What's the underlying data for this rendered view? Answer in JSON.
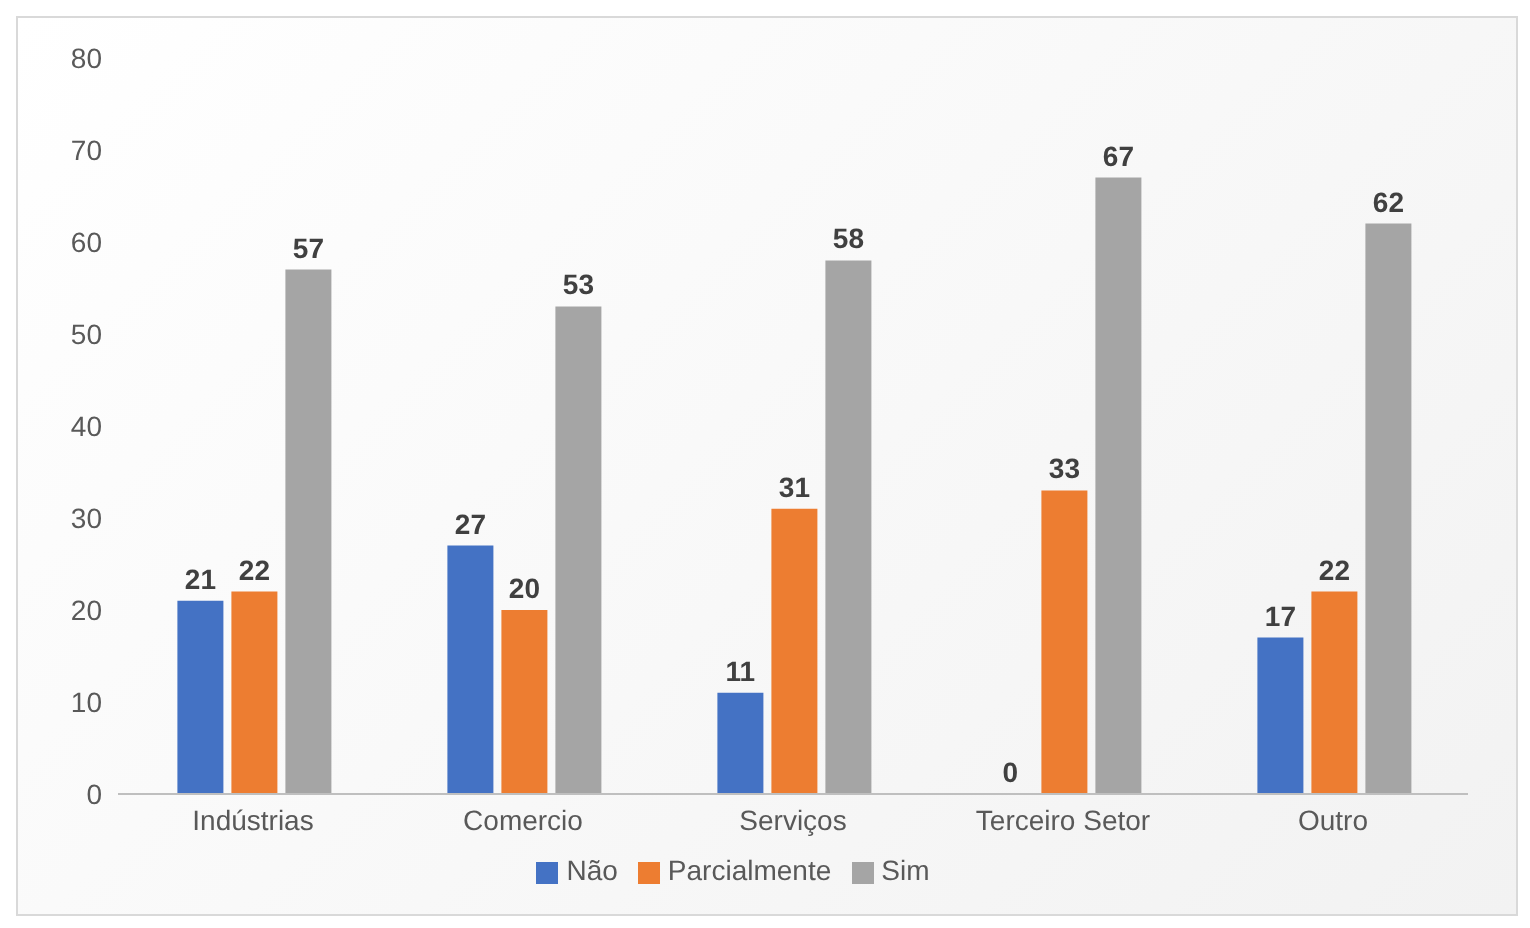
{
  "chart_data": {
    "type": "bar",
    "categories": [
      "Indústrias",
      "Comercio",
      "Serviços",
      "Terceiro Setor",
      "Outro"
    ],
    "series": [
      {
        "name": "Não",
        "color": "#4472c4",
        "values": [
          21,
          27,
          11,
          0,
          17
        ]
      },
      {
        "name": "Parcialmente",
        "color": "#ed7d31",
        "values": [
          22,
          20,
          31,
          33,
          22
        ]
      },
      {
        "name": "Sim",
        "color": "#a5a5a5",
        "values": [
          57,
          53,
          58,
          67,
          62
        ]
      }
    ],
    "ylim": [
      0,
      80
    ],
    "yticks": [
      0,
      10,
      20,
      30,
      40,
      50,
      60,
      70,
      80
    ],
    "grid": false,
    "legend": "bottom",
    "data_labels": true
  }
}
